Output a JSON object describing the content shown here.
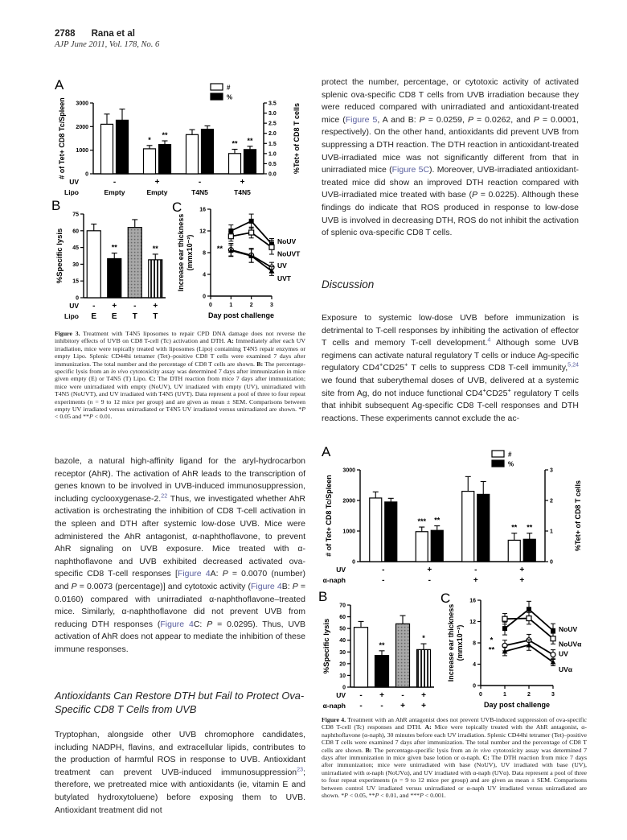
{
  "header": {
    "page_number": "2788",
    "running_authors": "Rana et al",
    "journal_line": "AJP June 2011, Vol. 178, No. 6"
  },
  "colors": {
    "link": "#5a5f9e",
    "text": "#232323",
    "chart_ink": "#000000"
  },
  "right_column": {
    "para_protect": [
      [
        "",
        "protect the number, percentage, or cytotoxic activity of activated splenic ova-specific CD8 T cells from UVB irradiation because they were reduced compared with unirradiated and antioxidant-treated mice ("
      ],
      [
        "l",
        "Figure 5"
      ],
      [
        "",
        ", A and B: "
      ],
      [
        "i",
        "P"
      ],
      [
        "",
        " = 0.0259, "
      ],
      [
        "i",
        "P"
      ],
      [
        "",
        " = 0.0262, and "
      ],
      [
        "i",
        "P"
      ],
      [
        "",
        " = 0.0001, respectively). On the other hand, antioxidants did prevent UVB from suppressing a DTH reaction. The DTH reaction in antioxidant-treated UVB-irradiated mice was not significantly different from that in unirradiated mice ("
      ],
      [
        "l",
        "Figure 5C"
      ],
      [
        "",
        "). Moreover, UVB-irradiated antioxidant-treated mice did show an improved DTH reaction compared with UVB-irradiated mice treated with base ("
      ],
      [
        "i",
        "P"
      ],
      [
        "",
        " = 0.0225). Although these findings do indicate that ROS produced in response to low-dose UVB is involved in decreasing DTH, ROS do not inhibit the activation of splenic ova-specific CD8 T cells."
      ]
    ],
    "discussion_heading": "Discussion",
    "para_exposure": [
      [
        "",
        "Exposure to systemic low-dose UVB before immunization is detrimental to T-cell responses by inhibiting the activation of effector T cells and memory T-cell development."
      ],
      [
        "sl",
        "4"
      ],
      [
        "",
        " Although some UVB regimens can activate natural regulatory T cells or induce Ag-specific regulatory CD4"
      ],
      [
        "s",
        "+"
      ],
      [
        "",
        "CD25"
      ],
      [
        "s",
        "+"
      ],
      [
        "",
        " T cells to suppress CD8 T-cell immunity,"
      ],
      [
        "sl",
        "5,24"
      ],
      [
        "",
        " we found that suberythemal doses of UVB, delivered at a systemic site from Ag, do not induce functional CD4"
      ],
      [
        "s",
        "+"
      ],
      [
        "",
        "CD25"
      ],
      [
        "s",
        "+"
      ],
      [
        "",
        " regulatory T cells that inhibit subsequent Ag-specific CD8 T-cell responses and DTH reactions. These experiments cannot exclude the ac-"
      ]
    ]
  },
  "left_column": {
    "para_bazole": [
      [
        "",
        "bazole, a natural high-affinity ligand for the aryl-hydrocarbon receptor (AhR). The activation of AhR leads to the transcription of genes known to be involved in UVB-induced immunosuppression, including cyclooxygenase-2."
      ],
      [
        "sl",
        "22"
      ],
      [
        "",
        " Thus, we investigated whether AhR activation is orchestrating the inhibition of CD8 T-cell activation in the spleen and DTH after systemic low-dose UVB. Mice were administered the AhR antagonist, α-naphthoflavone, to prevent AhR signaling on UVB exposure. Mice treated with α-naphthoflavone and UVB exhibited decreased activated ova-specific CD8 T-cell responses ["
      ],
      [
        "l",
        "Figure 4"
      ],
      [
        "",
        "A: "
      ],
      [
        "i",
        "P"
      ],
      [
        "",
        " = 0.0070 (number) and "
      ],
      [
        "i",
        "P"
      ],
      [
        "",
        " = 0.0073 (percentage)] and cytotoxic activity ("
      ],
      [
        "l",
        "Figure 4"
      ],
      [
        "",
        "B: "
      ],
      [
        "i",
        "P"
      ],
      [
        "",
        " = 0.0160) compared with unirradiated α-naphthoflavone–treated mice. Similarly, α-naphthoflavone did not prevent UVB from reducing DTH responses ("
      ],
      [
        "l",
        "Figure 4"
      ],
      [
        "",
        "C: "
      ],
      [
        "i",
        "P"
      ],
      [
        "",
        " = 0.0295). Thus, UVB activation of AhR does not appear to mediate the inhibition of these immune responses."
      ]
    ],
    "section_heading": "Antioxidants Can Restore DTH but Fail to Protect Ova-Specific CD8 T Cells from UVB",
    "para_tryptophan": [
      [
        "",
        "Tryptophan, alongside other UVB chromophore candidates, including NADPH, flavins, and extracellular lipids, contributes to the production of harmful ROS in response to UVB. Antioxidant treatment can prevent UVB-induced immunosuppression"
      ],
      [
        "sl",
        "23"
      ],
      [
        "",
        "; therefore, we pretreated mice with antioxidants (ie, vitamin E and butylated hydroxytoluene) before exposing them to UVB. Antioxidant treatment did not"
      ]
    ]
  },
  "figure3": {
    "caption": [
      [
        "b",
        "Figure 3."
      ],
      [
        "",
        " Treatment with T4N5 liposomes to repair CPD DNA damage does not reverse the inhibitory effects of UVB on CD8 T-cell (Tc) activation and DTH. "
      ],
      [
        "b",
        "A:"
      ],
      [
        "",
        " Immediately after each UV irradiation, mice were topically treated with liposomes (Lipo) containing T4N5 repair enzymes or empty Lipo. Splenic CD44hi tetramer (Tet)–positive CD8 T cells were examined 7 days after immunization. The total number and the percentage of CD8 T cells are shown. "
      ],
      [
        "b",
        "B:"
      ],
      [
        "",
        " The percentage-specific lysis from an "
      ],
      [
        "i",
        "in vivo"
      ],
      [
        "",
        " cytotoxicity assay was determined 7 days after immunization in mice given empty (E) or T4N5 (T) Lipo. "
      ],
      [
        "b",
        "C:"
      ],
      [
        "",
        " The DTH reaction from mice 7 days after immunization; mice were unirradiated with empty (NoUV), UV irradiated with empty (UV), unirradiated with T4N5 (NoUVT), and UV irradiated with T4N5 (UVT). Data represent a pool of three to four repeat experiments ("
      ],
      [
        "i",
        "n"
      ],
      [
        "",
        " = 9 to 12 mice per group) and are given as mean ± SEM. Comparisons between empty UV irradiated versus unirradiated or T4N5 UV irradiated versus unirradiated are shown. *"
      ],
      [
        "i",
        "P"
      ],
      [
        "",
        " < 0.05 and **"
      ],
      [
        "i",
        "P"
      ],
      [
        "",
        " < 0.01."
      ]
    ]
  },
  "figure4": {
    "caption": [
      [
        "b",
        "Figure 4."
      ],
      [
        "",
        " Treatment with an AhR antagonist does not prevent UVB-induced suppression of ova-specific CD8 T-cell (Tc) responses and DTH. "
      ],
      [
        "b",
        "A:"
      ],
      [
        "",
        " Mice were topically treated with the AhR antagonist, α-naphthoflavone (α-naph), 30 minutes before each UV irradiation. Splenic CD44hi tetramer (Tet)–positive CD8 T cells were examined 7 days after immunization. The total number and the percentage of CD8 T cells are shown. "
      ],
      [
        "b",
        "B:"
      ],
      [
        "",
        " The percentage-specific lysis from an "
      ],
      [
        "i",
        "in vivo"
      ],
      [
        "",
        " cytotoxicity assay was determined 7 days after immunization in mice given base lotion or α-naph. "
      ],
      [
        "b",
        "C:"
      ],
      [
        "",
        " The DTH reaction from mice 7 days after immunization; mice were unirradiated with base (NoUV), UV irradiated with base (UV), unirradiated with α-naph (NoUVα), and UV irradiated with α-naph (UVα). Data represent a pool of three to four repeat experiments ("
      ],
      [
        "i",
        "n"
      ],
      [
        "",
        " = 9 to 12 mice per group) and are given as mean ± SEM. Comparisons between control UV irradiated versus unirradiated or α-naph UV irradiated versus unirradiated are shown. *"
      ],
      [
        "i",
        "P"
      ],
      [
        "",
        " < 0.05, **"
      ],
      [
        "i",
        "P"
      ],
      [
        "",
        " < 0.01, and ***"
      ],
      [
        "i",
        "P"
      ],
      [
        "",
        " < 0.001."
      ]
    ]
  },
  "chart_data": {
    "fig3A": {
      "type": "bar-dual",
      "panel": "A",
      "legend": [
        {
          "label": "#",
          "style": "open"
        },
        {
          "label": "%",
          "style": "filled"
        }
      ],
      "left_axis": {
        "label": "# of Tet+ CD8 Tc/Spleen",
        "max": 3000,
        "ticks": [
          "0",
          "1000",
          "2000",
          "3000"
        ]
      },
      "right_axis": {
        "label": "%Tet+ of CD8 T cells",
        "max": 3.5,
        "ticks": [
          "0.0",
          "0.5",
          "1.0",
          "1.5",
          "2.0",
          "2.5",
          "3.0",
          "3.5"
        ]
      },
      "x_rows": [
        {
          "name": "UV",
          "values": [
            "-",
            "+",
            "-",
            "+"
          ]
        },
        {
          "name": "Lipo",
          "values": [
            "Empty",
            "Empty",
            "T4N5",
            "T4N5"
          ]
        }
      ],
      "groups": [
        {
          "num": 2100,
          "num_err": 430,
          "num_sig": "",
          "pct": 2.65,
          "pct_err": 0.55,
          "pct_sig": ""
        },
        {
          "num": 1060,
          "num_err": 140,
          "num_sig": "*",
          "pct": 1.45,
          "pct_err": 0.18,
          "pct_sig": "**"
        },
        {
          "num": 1660,
          "num_err": 210,
          "num_sig": "",
          "pct": 2.2,
          "pct_err": 0.17,
          "pct_sig": ""
        },
        {
          "num": 860,
          "num_err": 180,
          "num_sig": "**",
          "pct": 1.2,
          "pct_err": 0.16,
          "pct_sig": "**"
        }
      ]
    },
    "fig3B": {
      "type": "bar",
      "panel": "B",
      "y_axis": {
        "label": "%Specific lysis",
        "max": 75,
        "ticks": [
          "0",
          "15",
          "30",
          "45",
          "60",
          "75"
        ]
      },
      "x_rows": [
        {
          "name": "UV",
          "values": [
            "-",
            "+",
            "-",
            "+"
          ]
        },
        {
          "name": "Lipo",
          "values": [
            "E",
            "E",
            "T",
            "T"
          ]
        }
      ],
      "bars": [
        {
          "value": 60,
          "err": 6,
          "style": "open",
          "sig": ""
        },
        {
          "value": 35,
          "err": 5,
          "style": "filled",
          "sig": "**"
        },
        {
          "value": 63,
          "err": 7,
          "style": "dotted",
          "sig": ""
        },
        {
          "value": 34,
          "err": 5,
          "style": "striped",
          "sig": "**"
        }
      ]
    },
    "fig3C": {
      "type": "line",
      "panel": "C",
      "y_axis": {
        "label": [
          "Increase ear thickness",
          "(mmx10⁻²)"
        ],
        "max": 16,
        "ticks": [
          "0",
          "4",
          "8",
          "12",
          "16"
        ]
      },
      "x_axis": {
        "label": "Day post challenge",
        "max": 3,
        "ticks": [
          "0",
          "1",
          "2",
          "3"
        ]
      },
      "series": [
        {
          "name": "NoUV",
          "marker": "square-filled",
          "x": [
            1,
            2,
            3
          ],
          "y": [
            12.0,
            13.8,
            9.6
          ],
          "err": [
            1.1,
            1.3,
            1.0
          ],
          "label_dy": -3
        },
        {
          "name": "NoUVT",
          "marker": "square-open",
          "x": [
            1,
            2,
            3
          ],
          "y": [
            11.0,
            11.7,
            9.0
          ],
          "err": [
            0.9,
            1.0,
            1.3
          ],
          "label_dy": 8
        },
        {
          "name": "UV",
          "marker": "circle-open",
          "x": [
            1,
            2,
            3
          ],
          "y": [
            8.5,
            7.5,
            5.3
          ],
          "err": [
            1.2,
            1.3,
            0.9
          ],
          "label_dy": -2
        },
        {
          "name": "UVT",
          "marker": "triangle-filled",
          "x": [
            1,
            2,
            3
          ],
          "y": [
            8.4,
            7.4,
            4.6
          ],
          "err": [
            1.0,
            1.2,
            0.8
          ],
          "label_dy": 9
        }
      ],
      "sig": [
        {
          "text": "**",
          "x": 0.45,
          "y": 8.3
        }
      ]
    },
    "fig4A": {
      "type": "bar-dual",
      "panel": "A",
      "legend": [
        {
          "label": "#",
          "style": "open"
        },
        {
          "label": "%",
          "style": "filled"
        }
      ],
      "left_axis": {
        "label": "# of Tet+ CD8 Tc/Spleen",
        "max": 3000,
        "ticks": [
          "0",
          "1000",
          "2000",
          "3000"
        ]
      },
      "right_axis": {
        "label": "%Tet+ of CD8 T cells",
        "max": 3,
        "ticks": [
          "0",
          "1",
          "2",
          "3"
        ]
      },
      "x_rows": [
        {
          "name": "UV",
          "values": [
            "-",
            "+",
            "-",
            "+"
          ]
        },
        {
          "name": "α-naph",
          "values": [
            "-",
            "-",
            "+",
            "+"
          ]
        }
      ],
      "groups": [
        {
          "num": 2080,
          "num_err": 200,
          "num_sig": "",
          "pct": 1.95,
          "pct_err": 0.12,
          "pct_sig": ""
        },
        {
          "num": 980,
          "num_err": 150,
          "num_sig": "***",
          "pct": 1.02,
          "pct_err": 0.15,
          "pct_sig": "**"
        },
        {
          "num": 2300,
          "num_err": 480,
          "num_sig": "",
          "pct": 2.2,
          "pct_err": 0.42,
          "pct_sig": ""
        },
        {
          "num": 700,
          "num_err": 230,
          "num_sig": "**",
          "pct": 0.73,
          "pct_err": 0.2,
          "pct_sig": "**"
        }
      ]
    },
    "fig4B": {
      "type": "bar",
      "panel": "B",
      "y_axis": {
        "label": "%Specific lysis",
        "max": 70,
        "ticks": [
          "0",
          "10",
          "20",
          "30",
          "40",
          "50",
          "60",
          "70"
        ]
      },
      "x_rows": [
        {
          "name": "UV",
          "values": [
            "-",
            "+",
            "-",
            "+"
          ]
        },
        {
          "name": "α-naph",
          "values": [
            "-",
            "-",
            "+",
            "+"
          ]
        }
      ],
      "bars": [
        {
          "value": 51,
          "err": 5,
          "style": "open",
          "sig": ""
        },
        {
          "value": 27,
          "err": 4,
          "style": "filled",
          "sig": "**"
        },
        {
          "value": 54,
          "err": 7,
          "style": "dotted",
          "sig": ""
        },
        {
          "value": 32,
          "err": 5,
          "style": "striped",
          "sig": "*"
        }
      ]
    },
    "fig4C": {
      "type": "line",
      "panel": "C",
      "y_axis": {
        "label": [
          "Increase ear thickness",
          "(mmx10⁻²)"
        ],
        "max": 16,
        "ticks": [
          "0",
          "4",
          "8",
          "12",
          "16"
        ]
      },
      "x_axis": {
        "label": "Day post challenge",
        "max": 3,
        "ticks": [
          "0",
          "1",
          "2",
          "3"
        ]
      },
      "series": [
        {
          "name": "NoUV",
          "marker": "square-filled",
          "x": [
            1,
            2,
            3
          ],
          "y": [
            10.7,
            14.3,
            10.3
          ],
          "err": [
            1.2,
            1.5,
            1.3
          ],
          "label_dy": -2
        },
        {
          "name": "NoUVα",
          "marker": "square-open",
          "x": [
            1,
            2,
            3
          ],
          "y": [
            12.5,
            12.6,
            8.8
          ],
          "err": [
            1.0,
            1.1,
            1.0
          ],
          "label_dy": 7
        },
        {
          "name": "UV",
          "marker": "circle-open",
          "x": [
            1,
            2,
            3
          ],
          "y": [
            7.5,
            8.5,
            5.8
          ],
          "err": [
            1.0,
            1.1,
            0.9
          ],
          "label_dy": -1
        },
        {
          "name": "UVα",
          "marker": "triangle-filled",
          "x": [
            1,
            2,
            3
          ],
          "y": [
            6.4,
            7.6,
            4.4
          ],
          "err": [
            0.8,
            1.0,
            0.7
          ],
          "label_dy": 9
        }
      ],
      "sig": [
        {
          "text": "*",
          "x": 0.45,
          "y": 8.1
        },
        {
          "text": "**",
          "x": 0.45,
          "y": 6.3
        }
      ]
    }
  }
}
